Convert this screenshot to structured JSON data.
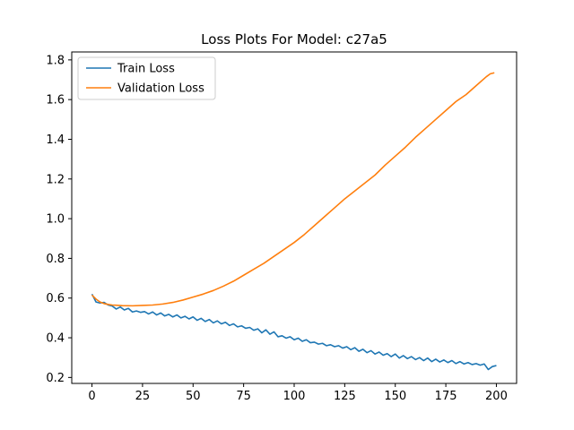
{
  "chart_data": {
    "type": "line",
    "title": "Loss Plots For Model: c27a5",
    "xlabel": "",
    "ylabel": "",
    "xlim": [
      -10,
      210
    ],
    "ylim": [
      0.17,
      1.84
    ],
    "xticks": [
      0,
      25,
      50,
      75,
      100,
      125,
      150,
      175,
      200
    ],
    "yticks": [
      0.2,
      0.4,
      0.6,
      0.8,
      1.0,
      1.2,
      1.4,
      1.6,
      1.8
    ],
    "ytick_labels": [
      "0.2",
      "0.4",
      "0.6",
      "0.8",
      "1.0",
      "1.2",
      "1.4",
      "1.6",
      "1.8"
    ],
    "grid": false,
    "legend": "upper-left",
    "series": [
      {
        "name": "Train Loss",
        "color": "#1f77b4",
        "x": [
          0,
          2,
          4,
          6,
          8,
          10,
          12,
          14,
          16,
          18,
          20,
          22,
          24,
          26,
          28,
          30,
          32,
          34,
          36,
          38,
          40,
          42,
          44,
          46,
          48,
          50,
          52,
          54,
          56,
          58,
          60,
          62,
          64,
          66,
          68,
          70,
          72,
          74,
          76,
          78,
          80,
          82,
          84,
          86,
          88,
          90,
          92,
          94,
          96,
          98,
          100,
          102,
          104,
          106,
          108,
          110,
          112,
          114,
          116,
          118,
          120,
          122,
          124,
          126,
          128,
          130,
          132,
          134,
          136,
          138,
          140,
          142,
          144,
          146,
          148,
          150,
          152,
          154,
          156,
          158,
          160,
          162,
          164,
          166,
          168,
          170,
          172,
          174,
          176,
          178,
          180,
          182,
          184,
          186,
          188,
          190,
          192,
          194,
          196,
          198,
          200
        ],
        "values": [
          0.62,
          0.58,
          0.575,
          0.578,
          0.565,
          0.56,
          0.545,
          0.555,
          0.54,
          0.548,
          0.53,
          0.535,
          0.528,
          0.532,
          0.52,
          0.53,
          0.515,
          0.525,
          0.51,
          0.518,
          0.505,
          0.515,
          0.5,
          0.508,
          0.495,
          0.505,
          0.488,
          0.498,
          0.482,
          0.492,
          0.475,
          0.485,
          0.47,
          0.478,
          0.462,
          0.47,
          0.455,
          0.46,
          0.448,
          0.452,
          0.438,
          0.445,
          0.425,
          0.44,
          0.418,
          0.43,
          0.405,
          0.41,
          0.398,
          0.405,
          0.39,
          0.398,
          0.382,
          0.39,
          0.375,
          0.378,
          0.368,
          0.372,
          0.36,
          0.365,
          0.355,
          0.36,
          0.348,
          0.355,
          0.34,
          0.35,
          0.332,
          0.342,
          0.325,
          0.335,
          0.318,
          0.328,
          0.312,
          0.32,
          0.305,
          0.318,
          0.298,
          0.31,
          0.295,
          0.305,
          0.29,
          0.3,
          0.285,
          0.298,
          0.28,
          0.292,
          0.278,
          0.288,
          0.275,
          0.285,
          0.27,
          0.28,
          0.268,
          0.275,
          0.265,
          0.27,
          0.262,
          0.268,
          0.24,
          0.255,
          0.26
        ]
      },
      {
        "name": "Validation Loss",
        "color": "#ff7f0e",
        "x": [
          0,
          2,
          4,
          6,
          8,
          10,
          15,
          20,
          25,
          30,
          35,
          40,
          45,
          50,
          55,
          60,
          65,
          70,
          75,
          80,
          85,
          90,
          95,
          100,
          105,
          110,
          115,
          120,
          125,
          130,
          135,
          140,
          145,
          150,
          155,
          160,
          165,
          170,
          175,
          180,
          185,
          190,
          195,
          197,
          199
        ],
        "values": [
          0.615,
          0.595,
          0.58,
          0.572,
          0.568,
          0.565,
          0.562,
          0.561,
          0.563,
          0.565,
          0.57,
          0.578,
          0.59,
          0.605,
          0.62,
          0.638,
          0.66,
          0.685,
          0.715,
          0.745,
          0.775,
          0.81,
          0.845,
          0.88,
          0.92,
          0.965,
          1.01,
          1.055,
          1.1,
          1.14,
          1.18,
          1.22,
          1.27,
          1.315,
          1.36,
          1.41,
          1.455,
          1.5,
          1.545,
          1.59,
          1.625,
          1.67,
          1.715,
          1.73,
          1.735
        ]
      }
    ]
  }
}
